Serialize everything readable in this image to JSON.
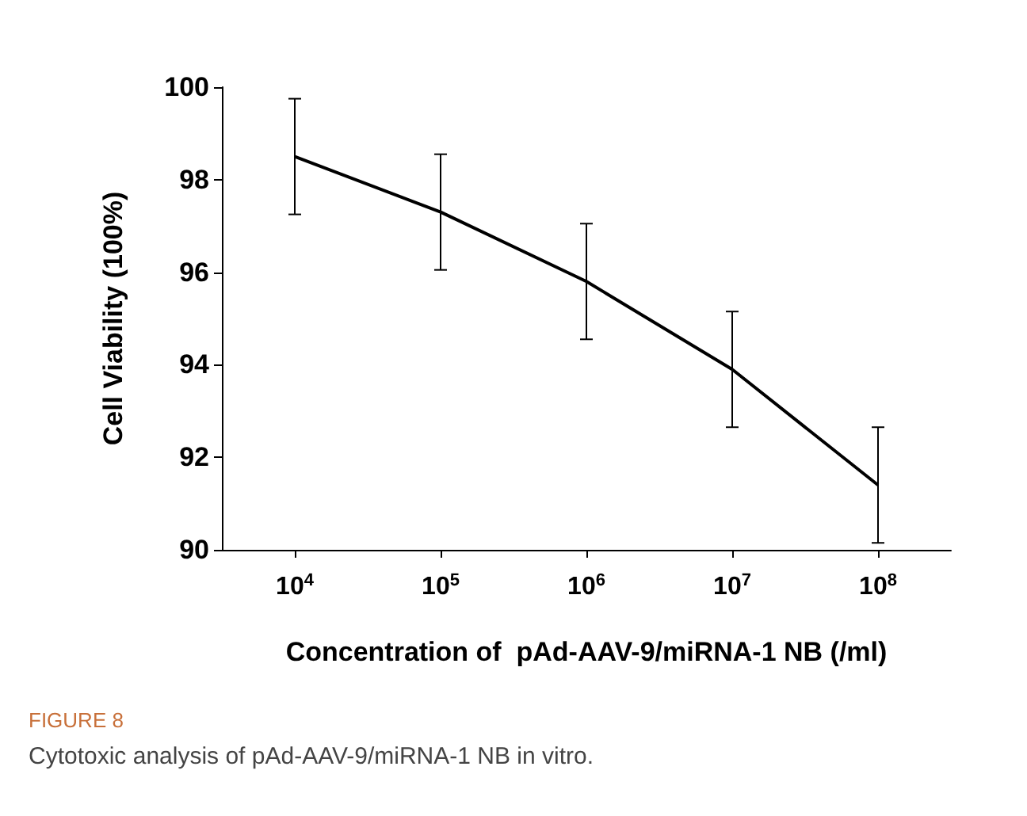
{
  "chart_data": {
    "type": "line",
    "categories": [
      "10$^{4}$",
      "10$^{5}$",
      "10$^{6}$",
      "10$^{7}$",
      "10$^{8}$"
    ],
    "values": [
      98.5,
      97.3,
      95.8,
      93.9,
      91.4
    ],
    "errors": [
      1.25,
      1.25,
      1.25,
      1.25,
      1.25
    ],
    "color": "#000000",
    "ylim": [
      90,
      100
    ],
    "yticks": [
      90,
      92,
      94,
      96,
      98,
      100
    ],
    "xlabel": "Concentration of  pAd-AAV-9/miRNA-1 NB (/ml)",
    "ylabel": "Cell Viability (100%)",
    "grid": false,
    "marker": "none",
    "line_style": "solid",
    "annotations": [
      "FIGURE 8",
      "Cytotoxic analysis of pAd-AAV-9/miRNA-1 NB in vitro."
    ]
  }
}
